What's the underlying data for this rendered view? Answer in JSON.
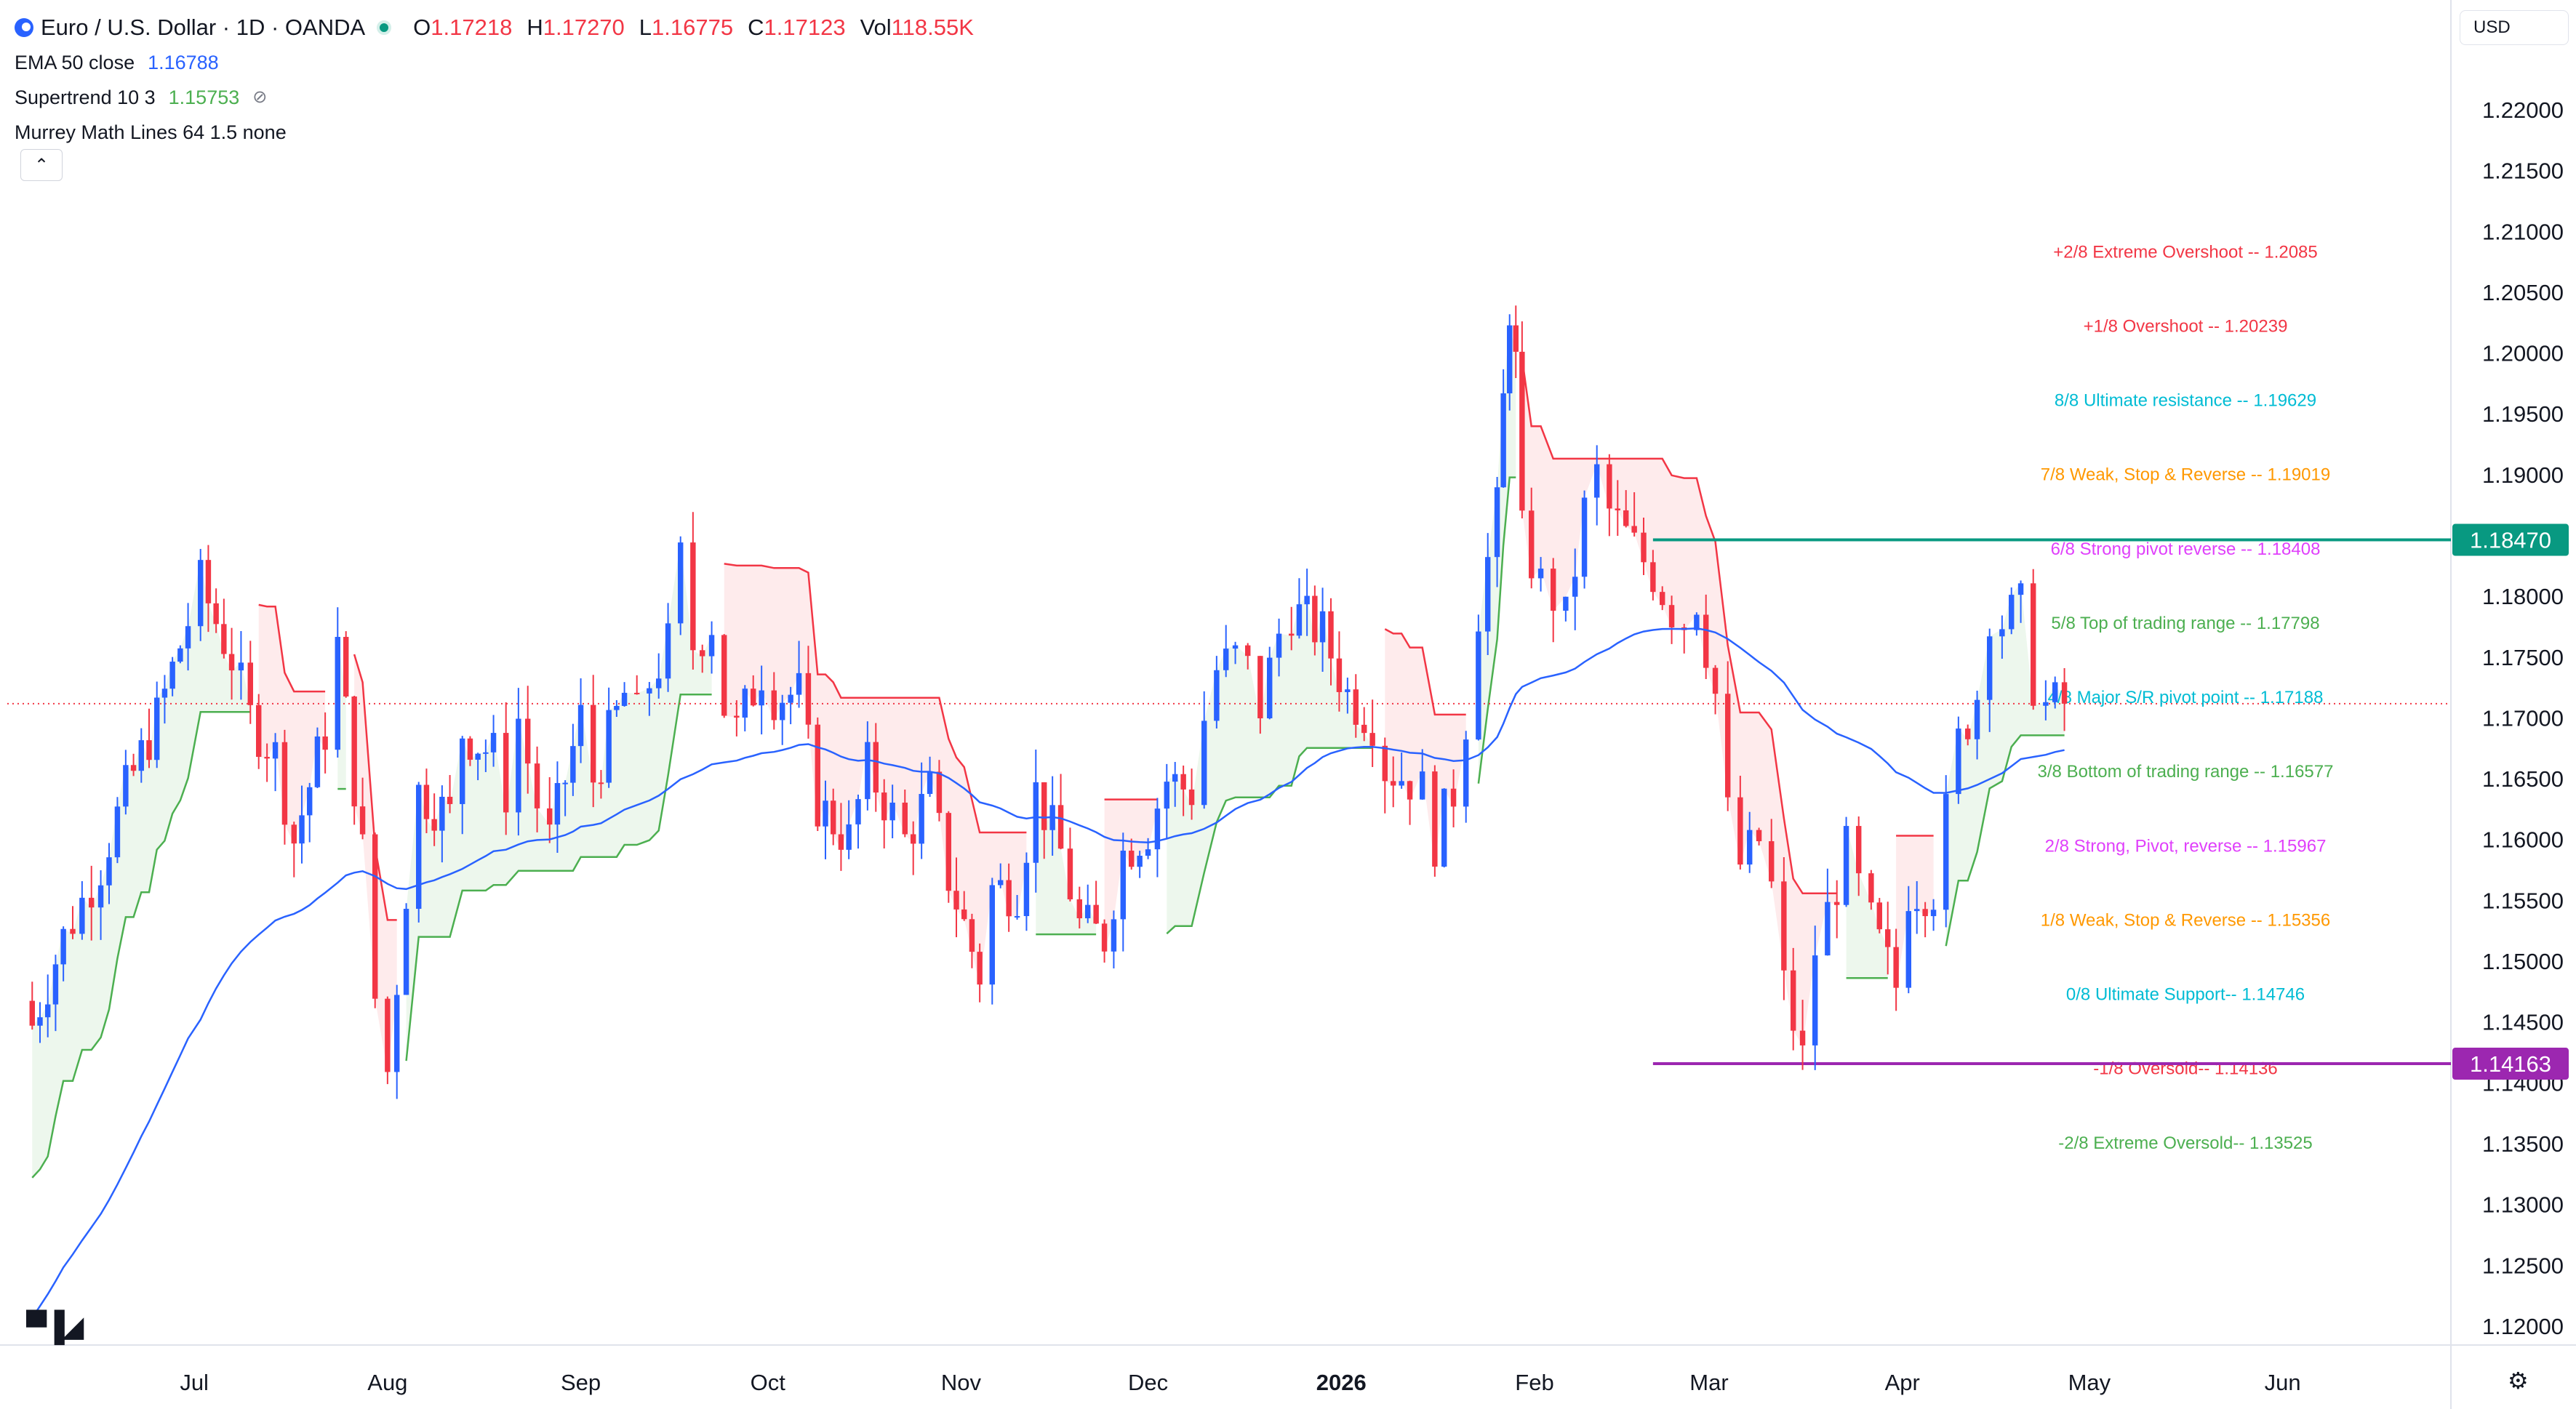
{
  "header": {
    "symbol": "Euro / U.S. Dollar · 1D · OANDA",
    "open_label": "O",
    "open": "1.17218",
    "high_label": "H",
    "high": "1.17270",
    "low_label": "L",
    "low": "1.16775",
    "close_label": "C",
    "close": "1.17123",
    "vol_label": "Vol",
    "vol": "118.55K"
  },
  "indicators": {
    "ema": {
      "name": "EMA 50 close",
      "value": "1.16788"
    },
    "supertrend": {
      "name": "Supertrend 10 3",
      "value": "1.15753"
    },
    "murrey": {
      "name": "Murrey Math Lines 64 1.5 none"
    }
  },
  "controls": {
    "currency": "USD",
    "collapse_icon": "chevron-up-icon",
    "settings_icon": "gear-icon",
    "logo_icon": "tradingview-logo-icon"
  },
  "colors": {
    "up": "#2962ff",
    "down": "#f23645",
    "ema": "#2962ff",
    "supertrend_up": "#4caf50",
    "supertrend_down": "#f23645",
    "price_line": "#f23645"
  },
  "chart_data": {
    "type": "candlestick",
    "symbol": "EUR/USD",
    "ylim": [
      1.1185,
      1.2255
    ],
    "y_ticks": [
      "1.22000",
      "1.21500",
      "1.21000",
      "1.20500",
      "1.20000",
      "1.19500",
      "1.19000",
      "1.18500",
      "1.18000",
      "1.17500",
      "1.17000",
      "1.16500",
      "1.16000",
      "1.15500",
      "1.15000",
      "1.14500",
      "1.14000",
      "1.13500",
      "1.13000",
      "1.12500",
      "1.12000"
    ],
    "x_labels": [
      {
        "label": "Jul",
        "date": "2025-07-01"
      },
      {
        "label": "Aug",
        "date": "2025-08-01"
      },
      {
        "label": "Sep",
        "date": "2025-09-01"
      },
      {
        "label": "Oct",
        "date": "2025-10-01"
      },
      {
        "label": "Nov",
        "date": "2025-11-01"
      },
      {
        "label": "Dec",
        "date": "2025-12-01"
      },
      {
        "label": "2026",
        "date": "2026-01-01",
        "bold": true
      },
      {
        "label": "Feb",
        "date": "2026-02-01"
      },
      {
        "label": "Mar",
        "date": "2026-03-01"
      },
      {
        "label": "Apr",
        "date": "2026-04-01"
      },
      {
        "label": "May",
        "date": "2026-05-01"
      },
      {
        "label": "Jun",
        "date": "2026-06-01"
      }
    ],
    "closes": [
      [
        "2025-06-05",
        1.1448
      ],
      [
        "2025-06-10",
        1.152
      ],
      [
        "2025-06-16",
        1.158
      ],
      [
        "2025-06-20",
        1.164
      ],
      [
        "2025-06-25",
        1.17
      ],
      [
        "2025-06-30",
        1.178
      ],
      [
        "2025-07-02",
        1.181
      ],
      [
        "2025-07-07",
        1.175
      ],
      [
        "2025-07-10",
        1.17
      ],
      [
        "2025-07-14",
        1.167
      ],
      [
        "2025-07-17",
        1.16
      ],
      [
        "2025-07-22",
        1.169
      ],
      [
        "2025-07-24",
        1.176
      ],
      [
        "2025-07-28",
        1.159
      ],
      [
        "2025-07-30",
        1.147
      ],
      [
        "2025-08-01",
        1.141
      ],
      [
        "2025-08-04",
        1.156
      ],
      [
        "2025-08-06",
        1.164
      ],
      [
        "2025-08-11",
        1.162
      ],
      [
        "2025-08-13",
        1.169
      ],
      [
        "2025-08-18",
        1.167
      ],
      [
        "2025-08-20",
        1.164
      ],
      [
        "2025-08-22",
        1.17
      ],
      [
        "2025-08-25",
        1.163
      ],
      [
        "2025-08-27",
        1.16
      ],
      [
        "2025-09-01",
        1.17
      ],
      [
        "2025-09-03",
        1.165
      ],
      [
        "2025-09-08",
        1.172
      ],
      [
        "2025-09-10",
        1.17
      ],
      [
        "2025-09-12",
        1.173
      ],
      [
        "2025-09-15",
        1.176
      ],
      [
        "2025-09-17",
        1.183
      ],
      [
        "2025-09-19",
        1.176
      ],
      [
        "2025-09-22",
        1.178
      ],
      [
        "2025-09-24",
        1.171
      ],
      [
        "2025-09-26",
        1.169
      ],
      [
        "2025-09-30",
        1.174
      ],
      [
        "2025-10-02",
        1.172
      ],
      [
        "2025-10-06",
        1.172
      ],
      [
        "2025-10-09",
        1.163
      ],
      [
        "2025-10-14",
        1.16
      ],
      [
        "2025-10-17",
        1.166
      ],
      [
        "2025-10-21",
        1.162
      ],
      [
        "2025-10-23",
        1.16
      ],
      [
        "2025-10-27",
        1.164
      ],
      [
        "2025-10-30",
        1.157
      ],
      [
        "2025-11-04",
        1.149
      ],
      [
        "2025-11-06",
        1.156
      ],
      [
        "2025-11-10",
        1.156
      ],
      [
        "2025-11-13",
        1.164
      ],
      [
        "2025-11-17",
        1.159
      ],
      [
        "2025-11-20",
        1.153
      ],
      [
        "2025-11-24",
        1.152
      ],
      [
        "2025-11-27",
        1.159
      ],
      [
        "2025-12-01",
        1.161
      ],
      [
        "2025-12-04",
        1.165
      ],
      [
        "2025-12-08",
        1.164
      ],
      [
        "2025-12-10",
        1.17
      ],
      [
        "2025-12-12",
        1.174
      ],
      [
        "2025-12-15",
        1.175
      ],
      [
        "2025-12-17",
        1.174
      ],
      [
        "2025-12-19",
        1.171
      ],
      [
        "2025-12-22",
        1.177
      ],
      [
        "2025-12-24",
        1.179
      ],
      [
        "2025-12-29",
        1.177
      ],
      [
        "2026-01-02",
        1.172
      ],
      [
        "2026-01-06",
        1.17
      ],
      [
        "2026-01-08",
        1.166
      ],
      [
        "2026-01-12",
        1.165
      ],
      [
        "2026-01-14",
        1.164
      ],
      [
        "2026-01-16",
        1.16
      ],
      [
        "2026-01-19",
        1.164
      ],
      [
        "2026-01-21",
        1.17
      ],
      [
        "2026-01-23",
        1.179
      ],
      [
        "2026-01-26",
        1.187
      ],
      [
        "2026-01-27",
        1.196
      ],
      [
        "2026-01-28",
        1.204
      ],
      [
        "2026-01-29",
        1.199
      ],
      [
        "2026-01-30",
        1.185
      ],
      [
        "2026-02-02",
        1.181
      ],
      [
        "2026-02-04",
        1.18
      ],
      [
        "2026-02-06",
        1.178
      ],
      [
        "2026-02-09",
        1.187
      ],
      [
        "2026-02-11",
        1.19
      ],
      [
        "2026-02-13",
        1.187
      ],
      [
        "2026-02-17",
        1.184
      ],
      [
        "2026-02-20",
        1.182
      ],
      [
        "2026-02-23",
        1.179
      ],
      [
        "2026-02-25",
        1.178
      ],
      [
        "2026-02-27",
        1.18
      ],
      [
        "2026-03-02",
        1.172
      ],
      [
        "2026-03-04",
        1.162
      ],
      [
        "2026-03-06",
        1.158
      ],
      [
        "2026-03-09",
        1.16
      ],
      [
        "2026-03-11",
        1.156
      ],
      [
        "2026-03-13",
        1.148
      ],
      [
        "2026-03-16",
        1.142
      ],
      [
        "2026-03-18",
        1.151
      ],
      [
        "2026-03-20",
        1.154
      ],
      [
        "2026-03-23",
        1.159
      ],
      [
        "2026-03-25",
        1.156
      ],
      [
        "2026-03-27",
        1.153
      ],
      [
        "2026-03-31",
        1.148
      ],
      [
        "2026-04-02",
        1.156
      ],
      [
        "2026-04-06",
        1.156
      ],
      [
        "2026-04-08",
        1.162
      ],
      [
        "2026-04-10",
        1.168
      ],
      [
        "2026-04-13",
        1.172
      ],
      [
        "2026-04-15",
        1.179
      ],
      [
        "2026-04-17",
        1.178
      ],
      [
        "2026-04-20",
        1.179
      ],
      [
        "2026-04-22",
        1.173
      ],
      [
        "2026-04-24",
        1.171
      ],
      [
        "2026-04-27",
        1.1712
      ]
    ],
    "murrey_lines": [
      {
        "label": "+2/8 Extreme Overshoot -- ",
        "value": "1.2085",
        "color": "#f23645"
      },
      {
        "label": "+1/8 Overshoot -- ",
        "value": "1.20239",
        "color": "#f23645"
      },
      {
        "label": "8/8 Ultimate resistance -- ",
        "value": "1.19629",
        "color": "#00bcd4"
      },
      {
        "label": "7/8 Weak, Stop & Reverse -- ",
        "value": "1.19019",
        "color": "#ff9800"
      },
      {
        "label": "6/8 Strong pivot reverse -- ",
        "value": "1.18408",
        "color": "#e040fb"
      },
      {
        "label": "5/8 Top of trading range -- ",
        "value": "1.17798",
        "color": "#4caf50"
      },
      {
        "label": "4/8 Major S/R pivot point -- ",
        "value": "1.17188",
        "color": "#00bcd4"
      },
      {
        "label": "3/8 Bottom of trading range -- ",
        "value": "1.16577",
        "color": "#4caf50"
      },
      {
        "label": "2/8 Strong, Pivot, reverse -- ",
        "value": "1.15967",
        "color": "#e040fb"
      },
      {
        "label": "1/8 Weak, Stop & Reverse -- ",
        "value": "1.15356",
        "color": "#ff9800"
      },
      {
        "label": "0/8 Ultimate Support-- ",
        "value": "1.14746",
        "color": "#00bcd4"
      },
      {
        "label": "-1/8 Oversold-- ",
        "value": "1.14136",
        "color": "#f23645"
      },
      {
        "label": "-2/8 Extreme Oversold-- ",
        "value": "1.13525",
        "color": "#4caf50"
      }
    ],
    "horizontal_lines": [
      {
        "value": 1.1847,
        "label": "1.18470",
        "color": "#089981",
        "from_date": "2026-02-20"
      },
      {
        "value": 1.14163,
        "label": "1.14163",
        "color": "#9c27b0",
        "from_date": "2026-02-20"
      }
    ],
    "current_price": 1.17123
  }
}
